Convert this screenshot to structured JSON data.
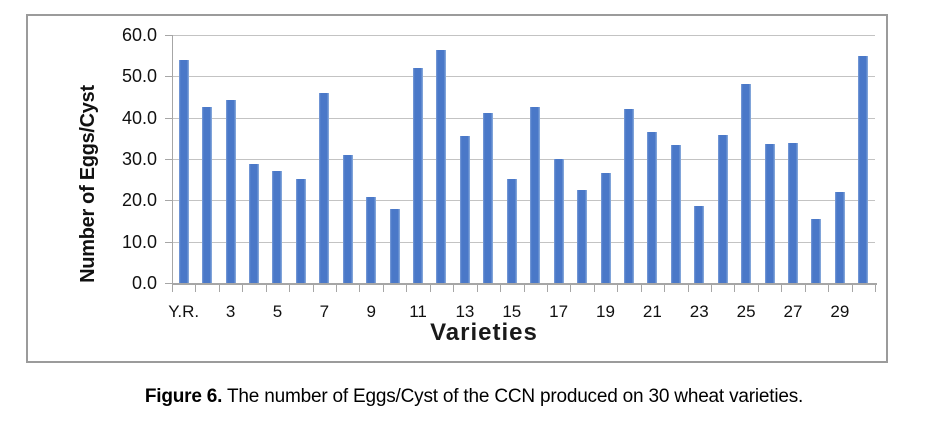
{
  "figure": {
    "caption_prefix": "Figure 6.",
    "caption_text": " The number of Eggs/Cyst of the CCN produced on 30 wheat varieties."
  },
  "chart_data": {
    "type": "bar",
    "title": "",
    "xlabel": "Varieties",
    "ylabel": "Number of Eggs/Cyst",
    "ylim": [
      0,
      60
    ],
    "ytick_step": 10,
    "ytick_labels": [
      "60.0",
      "50.0",
      "40.0",
      "30.0",
      "20.0",
      "10.0",
      "0.0"
    ],
    "grid": true,
    "legend": "none",
    "bar_color": "#4a78c8",
    "gridline_color": "#c3c3c3",
    "axis_color": "#a6a6a6",
    "n_bars": 30,
    "xtick_labels": [
      "Y.R.",
      "3",
      "5",
      "7",
      "9",
      "11",
      "13",
      "15",
      "17",
      "19",
      "21",
      "23",
      "25",
      "27",
      "29"
    ],
    "xtick_label_every": 2,
    "values": [
      54.0,
      42.7,
      44.2,
      28.8,
      27.0,
      25.2,
      46.0,
      31.0,
      20.8,
      17.8,
      51.9,
      56.3,
      35.5,
      41.1,
      25.2,
      42.6,
      30.0,
      22.5,
      26.7,
      42.1,
      36.6,
      33.5,
      18.6,
      35.9,
      48.1,
      33.6,
      33.8,
      15.5,
      22.0,
      55.0
    ]
  }
}
